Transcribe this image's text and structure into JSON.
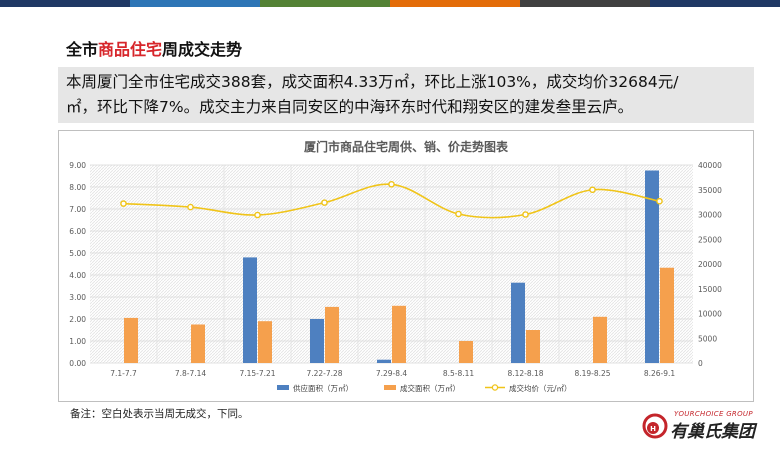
{
  "colors": {
    "top_bar": [
      "#1f3864",
      "#2e75b6",
      "#548235",
      "#e36c09",
      "#404040"
    ],
    "supply": "#4e80c0",
    "deal": "#f5a04d",
    "price": "#f0c419",
    "accent": "#d7262b"
  },
  "header": {
    "title_pre": "全市",
    "title_highlight": "商品住宅",
    "title_post": "周成交走势"
  },
  "summary": {
    "line1": "本周厦门全市住宅成交388套，成交面积4.33万㎡，环比上涨103%，成交均价32684元/",
    "line2": "㎡，环比下降7%。成交主力来自同安区的中海环东时代和翔安区的建发叁里云庐。"
  },
  "note": "备注：空白处表示当周无成交，下同。",
  "logo": {
    "group_text": "YOURCHOICE GROUP",
    "name": "有巢氏集团",
    "mark_text": "H"
  },
  "chart_data": {
    "type": "bar",
    "title": "厦门市商品住宅周供、销、价走势图表",
    "categories": [
      "7.1-7.7",
      "7.8-7.14",
      "7.15-7.21",
      "7.22-7.28",
      "7.29-8.4",
      "8.5-8.11",
      "8.12-8.18",
      "8.19-8.25",
      "8.26-9.1"
    ],
    "series": [
      {
        "name": "供应面积（万㎡）",
        "type": "bar",
        "axis": "left",
        "values": [
          null,
          null,
          4.8,
          2.0,
          0.15,
          null,
          3.65,
          null,
          8.75
        ]
      },
      {
        "name": "成交面积（万㎡）",
        "type": "bar",
        "axis": "left",
        "values": [
          2.05,
          1.75,
          1.9,
          2.55,
          2.6,
          1.0,
          1.5,
          2.1,
          4.33
        ]
      },
      {
        "name": "成交均价（元/㎡）",
        "type": "line",
        "axis": "right",
        "values": [
          32200,
          31500,
          29900,
          32400,
          36100,
          30100,
          30000,
          35000,
          32684
        ]
      }
    ],
    "y_left": {
      "min": 0,
      "max": 9,
      "step": 1,
      "ticks": [
        "0.00",
        "1.00",
        "2.00",
        "3.00",
        "4.00",
        "5.00",
        "6.00",
        "7.00",
        "8.00",
        "9.00"
      ]
    },
    "y_right": {
      "min": 0,
      "max": 40000,
      "step": 5000,
      "ticks": [
        "0",
        "5000",
        "10000",
        "15000",
        "20000",
        "25000",
        "30000",
        "35000",
        "40000"
      ]
    },
    "legend_position": "bottom-right",
    "grid": true
  }
}
